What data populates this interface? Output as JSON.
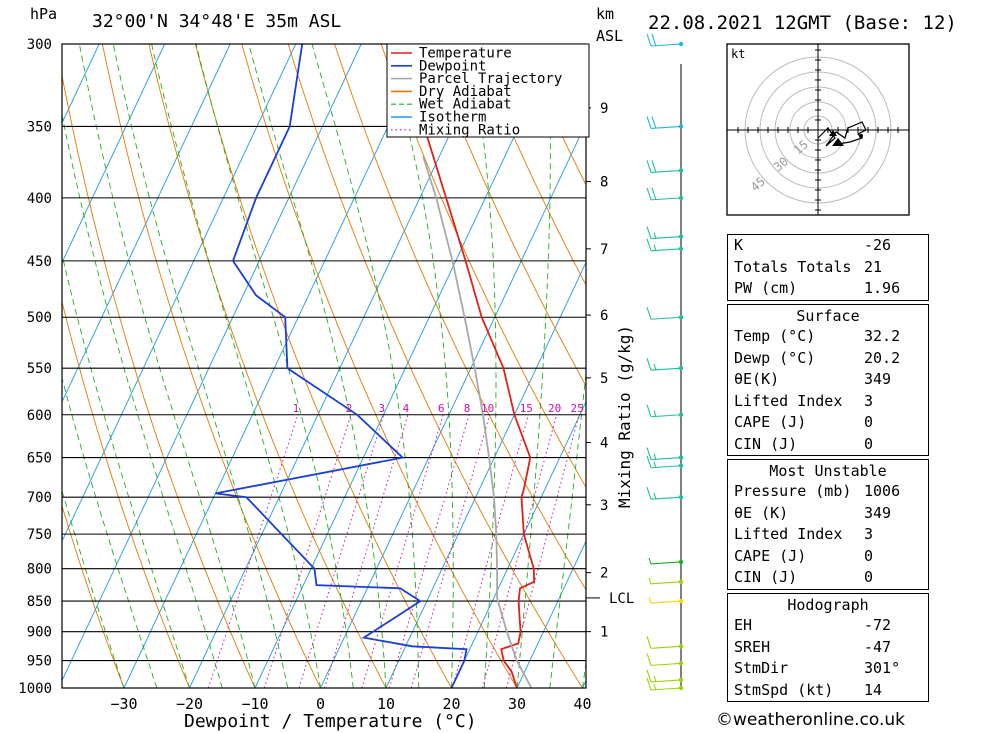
{
  "header": {
    "hpa_label": "hPa",
    "location": "32°00'N  34°48'E  35m  ASL",
    "km_label": "km",
    "asl_label": "ASL",
    "datetime": "22.08.2021  12GMT  (Base: 12)"
  },
  "chart_data": {
    "type": "line",
    "subtype": "skew-T log-P thermodynamic diagram",
    "xlabel": "Dewpoint / Temperature (°C)",
    "ylabel": "hPa",
    "x_ticks": [
      -30,
      -20,
      -10,
      0,
      10,
      20,
      30,
      40
    ],
    "pressure_levels": [
      300,
      350,
      400,
      450,
      500,
      550,
      600,
      650,
      700,
      750,
      800,
      850,
      900,
      950,
      1000
    ],
    "km_ticks": [
      {
        "km": 1,
        "p": 900
      },
      {
        "km": 2,
        "p": 806
      },
      {
        "km": 3,
        "p": 710
      },
      {
        "km": 4,
        "p": 632
      },
      {
        "km": 5,
        "p": 560
      },
      {
        "km": 6,
        "p": 498
      },
      {
        "km": 7,
        "p": 440
      },
      {
        "km": 8,
        "p": 388
      },
      {
        "km": 9,
        "p": 338
      }
    ],
    "lcl": {
      "label": "LCL",
      "p": 845
    },
    "mixing_ratio_axis_label": "Mixing Ratio (g/kg)",
    "mixing_ratio_labels": [
      "1",
      "2",
      "3",
      "4",
      "6",
      "8",
      "10",
      "15",
      "20",
      "25"
    ],
    "mixing_ratio_values": [
      1,
      2,
      3,
      4,
      6,
      8,
      10,
      15,
      20,
      25
    ],
    "legend": {
      "placement": "top-right",
      "entries": [
        {
          "label": "Temperature",
          "color": "#e0201a",
          "style": "solid"
        },
        {
          "label": "Dewpoint",
          "color": "#1a3ed8",
          "style": "solid"
        },
        {
          "label": "Parcel Trajectory",
          "color": "#a8a8a8",
          "style": "solid"
        },
        {
          "label": "Dry Adiabat",
          "color": "#e07a00",
          "style": "solid"
        },
        {
          "label": "Wet Adiabat",
          "color": "#1fae1f",
          "style": "dashed"
        },
        {
          "label": "Isotherm",
          "color": "#1f9bde",
          "style": "solid"
        },
        {
          "label": "Mixing Ratio",
          "color": "#cc11aa",
          "style": "dotted"
        }
      ]
    },
    "series": [
      {
        "name": "Temperature",
        "points": [
          [
            1000,
            30
          ],
          [
            970,
            28
          ],
          [
            950,
            26
          ],
          [
            930,
            24.8
          ],
          [
            920,
            27
          ],
          [
            900,
            26.5
          ],
          [
            870,
            25
          ],
          [
            850,
            24
          ],
          [
            830,
            23.3
          ],
          [
            820,
            25
          ],
          [
            800,
            24
          ],
          [
            750,
            20
          ],
          [
            700,
            17
          ],
          [
            690,
            16.8
          ],
          [
            650,
            15.5
          ],
          [
            600,
            10
          ],
          [
            550,
            5
          ],
          [
            500,
            -2
          ],
          [
            450,
            -8.5
          ],
          [
            400,
            -16
          ],
          [
            350,
            -24.5
          ]
        ]
      },
      {
        "name": "Dewpoint",
        "points": [
          [
            1000,
            20
          ],
          [
            950,
            20
          ],
          [
            930,
            19.5
          ],
          [
            925,
            11
          ],
          [
            910,
            3
          ],
          [
            900,
            4
          ],
          [
            880,
            6
          ],
          [
            850,
            9
          ],
          [
            830,
            5
          ],
          [
            825,
            -8
          ],
          [
            800,
            -9.5
          ],
          [
            750,
            -17
          ],
          [
            700,
            -25
          ],
          [
            695,
            -30
          ],
          [
            650,
            -4
          ],
          [
            600,
            -14
          ],
          [
            550,
            -28
          ],
          [
            500,
            -32
          ],
          [
            480,
            -38
          ],
          [
            450,
            -44
          ],
          [
            400,
            -45
          ],
          [
            350,
            -45
          ],
          [
            300,
            -49
          ]
        ]
      },
      {
        "name": "Parcel Trajectory",
        "points": [
          [
            1000,
            32.2
          ],
          [
            950,
            28
          ],
          [
            900,
            24.4
          ],
          [
            845,
            20.5
          ],
          [
            800,
            18.4
          ],
          [
            750,
            15.8
          ],
          [
            700,
            12.8
          ],
          [
            650,
            9.2
          ],
          [
            600,
            5.2
          ],
          [
            550,
            0.6
          ],
          [
            500,
            -4.6
          ],
          [
            450,
            -10.5
          ],
          [
            400,
            -17.5
          ],
          [
            370,
            -22.5
          ]
        ]
      }
    ],
    "wind_barbs": [
      {
        "p": 1000,
        "speed_kt": 15,
        "color": "#9ad400"
      },
      {
        "p": 985,
        "speed_kt": 15,
        "color": "#9ad400"
      },
      {
        "p": 955,
        "speed_kt": 10,
        "color": "#9ad400"
      },
      {
        "p": 925,
        "speed_kt": 10,
        "color": "#9ad400"
      },
      {
        "p": 850,
        "speed_kt": 5,
        "color": "#ffd400"
      },
      {
        "p": 820,
        "speed_kt": 5,
        "color": "#9ad400"
      },
      {
        "p": 790,
        "speed_kt": 5,
        "color": "#1fae1f"
      },
      {
        "p": 700,
        "speed_kt": 15,
        "color": "#1fc09a"
      },
      {
        "p": 660,
        "speed_kt": 15,
        "color": "#1fc09a"
      },
      {
        "p": 650,
        "speed_kt": 15,
        "color": "#1fc09a"
      },
      {
        "p": 600,
        "speed_kt": 15,
        "color": "#1fc09a"
      },
      {
        "p": 550,
        "speed_kt": 15,
        "color": "#1fc09a"
      },
      {
        "p": 500,
        "speed_kt": 10,
        "color": "#1fc09a"
      },
      {
        "p": 440,
        "speed_kt": 15,
        "color": "#1fc09a"
      },
      {
        "p": 430,
        "speed_kt": 15,
        "color": "#1fc09a"
      },
      {
        "p": 400,
        "speed_kt": 20,
        "color": "#1fc09a"
      },
      {
        "p": 380,
        "speed_kt": 20,
        "color": "#1fc09a"
      },
      {
        "p": 350,
        "speed_kt": 20,
        "color": "#1fb8d8"
      },
      {
        "p": 300,
        "speed_kt": 20,
        "color": "#1fb8d8"
      }
    ],
    "hodograph": {
      "unit_label": "kt",
      "ring_labels": [
        "15",
        "30",
        "45"
      ]
    }
  },
  "indices": {
    "top": [
      {
        "key": "K",
        "value": "-26"
      },
      {
        "key": "Totals Totals",
        "value": "21"
      },
      {
        "key": "PW (cm)",
        "value": "1.96"
      }
    ],
    "surface": {
      "title": "Surface",
      "rows": [
        {
          "key": "Temp (°C)",
          "value": "32.2"
        },
        {
          "key": "Dewp (°C)",
          "value": "20.2"
        },
        {
          "key": "θE(K)",
          "value": "349"
        },
        {
          "key": "Lifted Index",
          "value": "3"
        },
        {
          "key": "CAPE (J)",
          "value": "0"
        },
        {
          "key": "CIN (J)",
          "value": "0"
        }
      ]
    },
    "most_unstable": {
      "title": "Most Unstable",
      "rows": [
        {
          "key": "Pressure (mb)",
          "value": "1006"
        },
        {
          "key": "θE (K)",
          "value": "349"
        },
        {
          "key": "Lifted Index",
          "value": "3"
        },
        {
          "key": "CAPE (J)",
          "value": "0"
        },
        {
          "key": "CIN (J)",
          "value": "0"
        }
      ]
    },
    "hodograph": {
      "title": "Hodograph",
      "rows": [
        {
          "key": "EH",
          "value": "-72"
        },
        {
          "key": "SREH",
          "value": "-47"
        },
        {
          "key": "StmDir",
          "value": "301°"
        },
        {
          "key": "StmSpd (kt)",
          "value": "14"
        }
      ]
    }
  },
  "footer": {
    "credit": "©weatheronline.co.uk"
  }
}
